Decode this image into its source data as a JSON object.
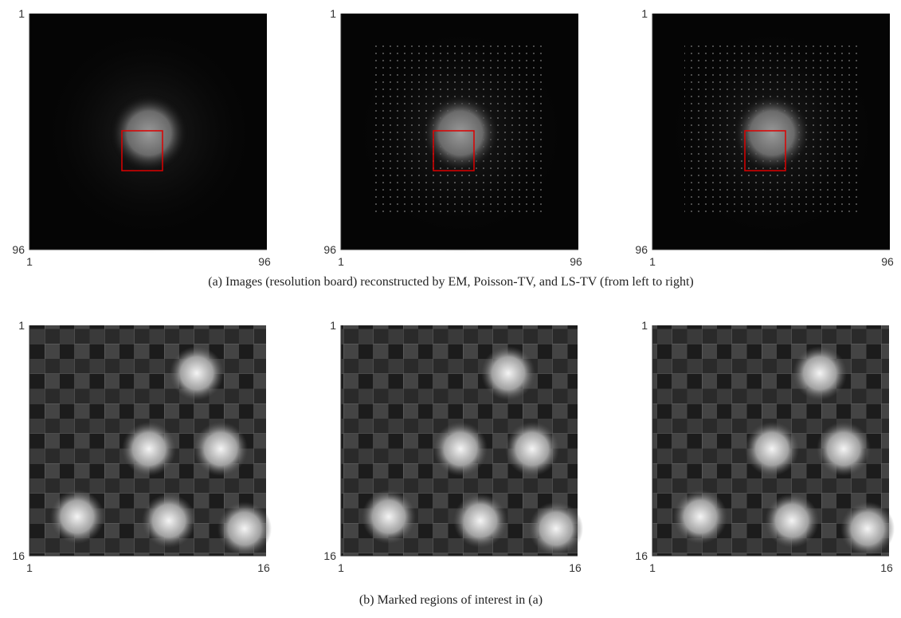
{
  "rows": [
    {
      "panels": [
        {
          "y_top": "1",
          "y_bottom": "96",
          "x_left": "1",
          "x_right": "96"
        },
        {
          "y_top": "1",
          "y_bottom": "96",
          "x_left": "1",
          "x_right": "96"
        },
        {
          "y_top": "1",
          "y_bottom": "96",
          "x_left": "1",
          "x_right": "96"
        }
      ],
      "caption": "(a) Images (resolution board) reconstructed by EM, Poisson-TV, and LS-TV (from left to right)"
    },
    {
      "panels": [
        {
          "y_top": "1",
          "y_bottom": "16",
          "x_left": "1",
          "x_right": "16"
        },
        {
          "y_top": "1",
          "y_bottom": "16",
          "x_left": "1",
          "x_right": "16"
        },
        {
          "y_top": "1",
          "y_bottom": "16",
          "x_left": "1",
          "x_right": "16"
        }
      ],
      "caption": "(b) Marked regions of interest in (a)"
    }
  ]
}
